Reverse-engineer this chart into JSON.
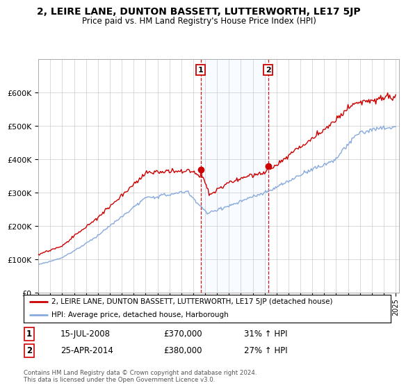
{
  "title": "2, LEIRE LANE, DUNTON BASSETT, LUTTERWORTH, LE17 5JP",
  "subtitle": "Price paid vs. HM Land Registry's House Price Index (HPI)",
  "sale1_price": 370000,
  "sale1_label": "1",
  "sale1_hpi_pct": "31% ↑ HPI",
  "sale1_date_str": "15-JUL-2008",
  "sale2_price": 380000,
  "sale2_label": "2",
  "sale2_hpi_pct": "27% ↑ HPI",
  "sale2_date_str": "25-APR-2014",
  "legend_property": "2, LEIRE LANE, DUNTON BASSETT, LUTTERWORTH, LE17 5JP (detached house)",
  "legend_hpi": "HPI: Average price, detached house, Harborough",
  "footer": "Contains HM Land Registry data © Crown copyright and database right 2024.\nThis data is licensed under the Open Government Licence v3.0.",
  "property_color": "#cc0000",
  "hpi_color": "#88aadd",
  "shade_color": "#ddeeff",
  "ylim_min": 0,
  "ylim_max": 700000,
  "yticks": [
    0,
    100000,
    200000,
    300000,
    400000,
    500000,
    600000
  ],
  "start_year": 1995,
  "end_year": 2025
}
